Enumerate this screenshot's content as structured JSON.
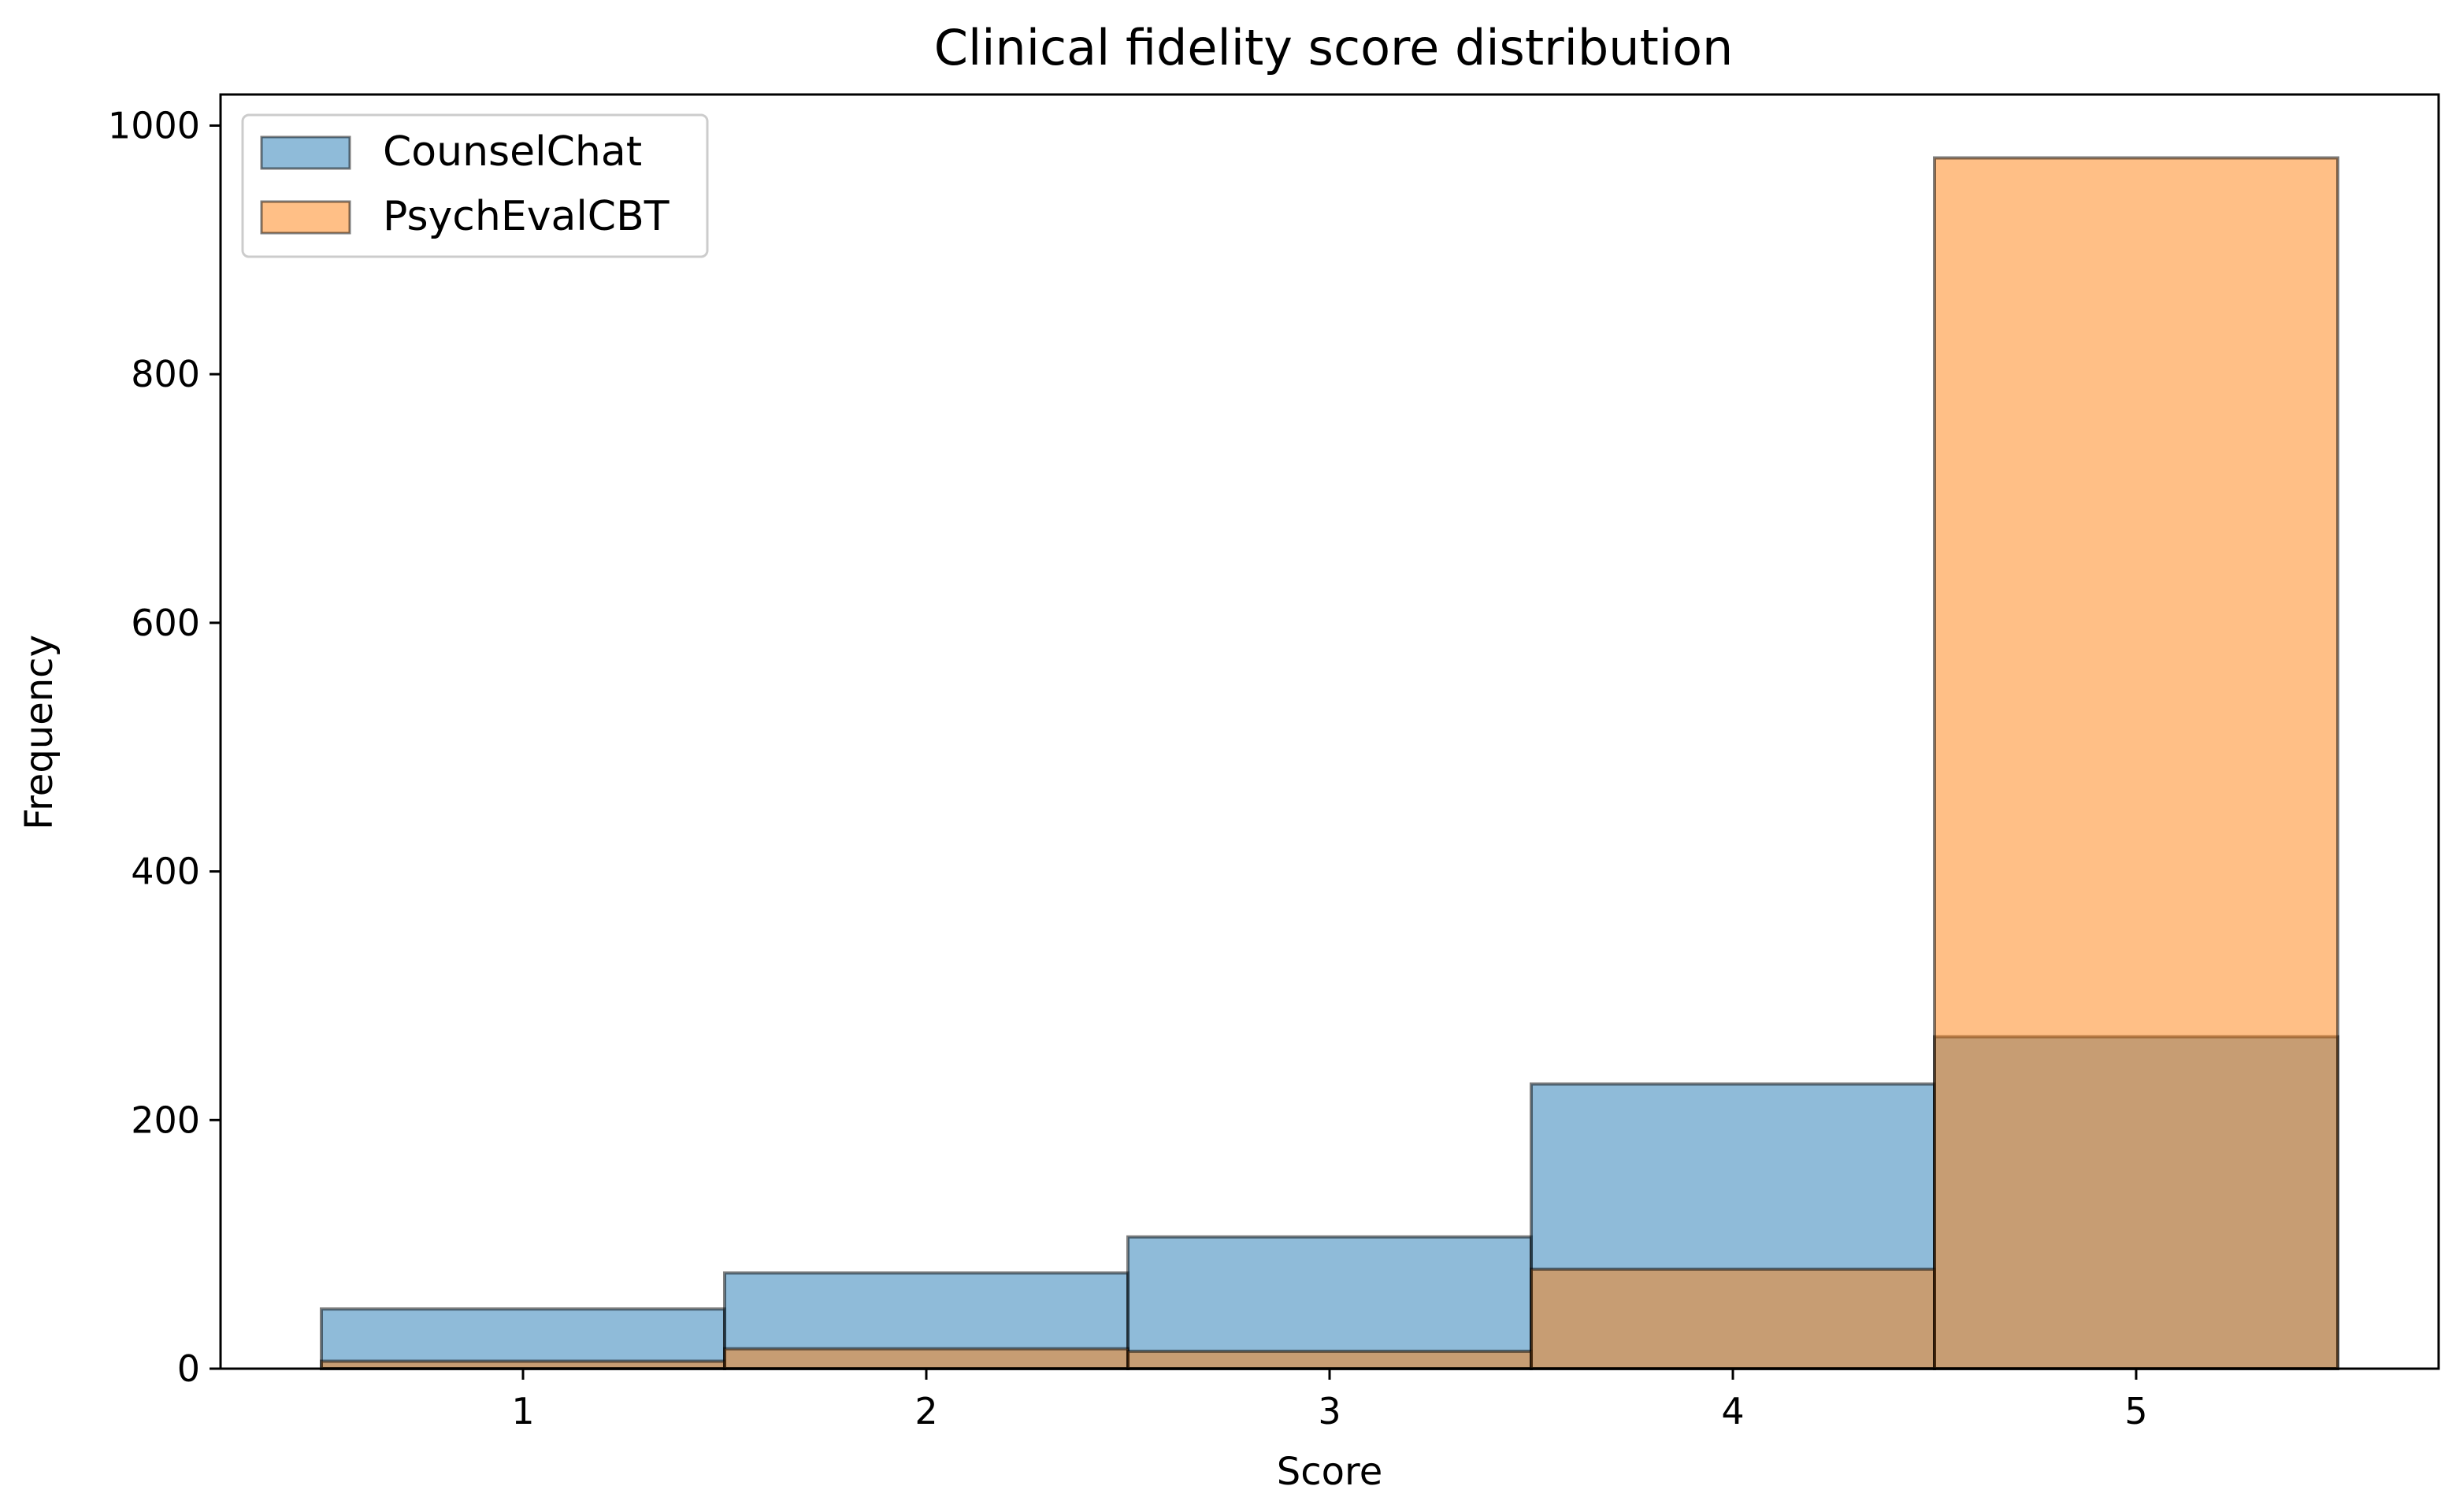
{
  "chart_data": {
    "type": "bar",
    "title": "Clinical fidelity score distribution",
    "xlabel": "Score",
    "ylabel": "Frequency",
    "categories": [
      "1",
      "2",
      "3",
      "4",
      "5"
    ],
    "x": [
      1,
      2,
      3,
      4,
      5
    ],
    "xlim": [
      0.25,
      5.75
    ],
    "ylim": [
      0,
      1025
    ],
    "yticks": [
      0,
      200,
      400,
      600,
      800,
      1000
    ],
    "grid": false,
    "legend_position": "top-left",
    "series": [
      {
        "name": "CounselChat",
        "values": [
          48,
          77,
          106,
          229,
          267
        ],
        "color": "#1f77b4",
        "opacity": 0.5
      },
      {
        "name": "PsychEvalCBT",
        "values": [
          6,
          16,
          14,
          80,
          974
        ],
        "color": "#ff7f0e",
        "opacity": 0.5
      }
    ]
  }
}
